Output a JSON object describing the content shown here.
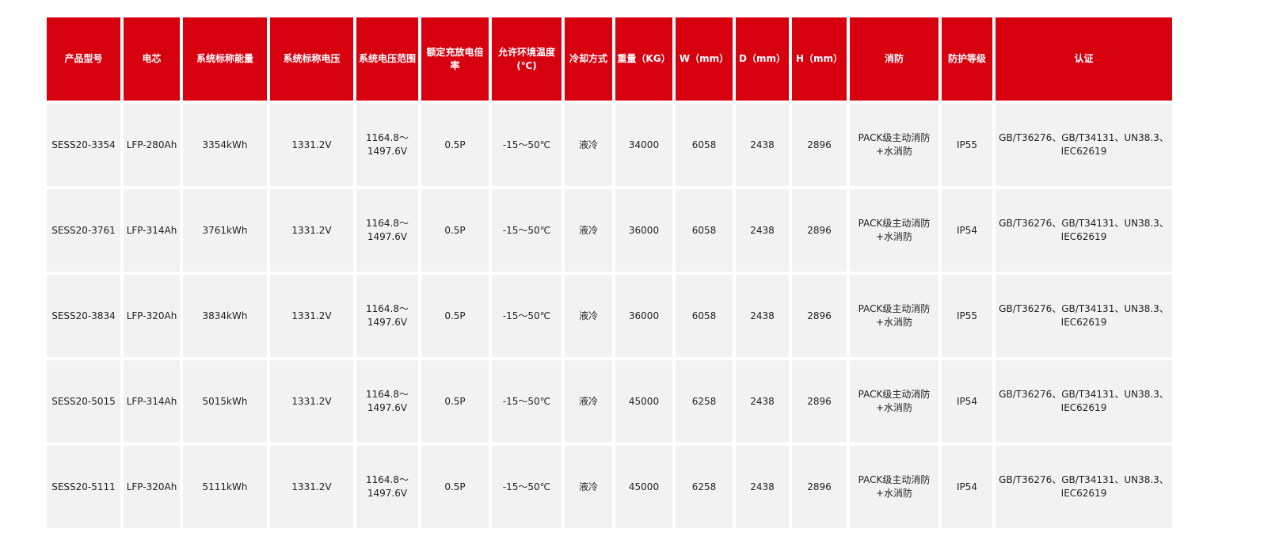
{
  "table": {
    "headers": [
      "产品型号",
      "电芯",
      "系统标称能量",
      "系统标称电压",
      "系统电压范围",
      "额定充放电倍率",
      "允许环境温度(℃)",
      "冷却方式",
      "重量（KG）",
      "W（mm）",
      "D（mm）",
      "H（mm）",
      "消防",
      "防护等级",
      "认证"
    ],
    "rows": [
      [
        "SESS20-3354",
        "LFP-280Ah",
        "3354kWh",
        "1331.2V",
        "1164.8～1497.6V",
        "0.5P",
        "-15～50℃",
        "液冷",
        "34000",
        "6058",
        "2438",
        "2896",
        "PACK级主动消防+水消防",
        "IP55",
        "GB/T36276、GB/T34131、UN38.3、IEC62619"
      ],
      [
        "SESS20-3761",
        "LFP-314Ah",
        "3761kWh",
        "1331.2V",
        "1164.8～1497.6V",
        "0.5P",
        "-15～50℃",
        "液冷",
        "36000",
        "6058",
        "2438",
        "2896",
        "PACK级主动消防+水消防",
        "IP54",
        "GB/T36276、GB/T34131、UN38.3、IEC62619"
      ],
      [
        "SESS20-3834",
        "LFP-320Ah",
        "3834kWh",
        "1331.2V",
        "1164.8～1497.6V",
        "0.5P",
        "-15～50℃",
        "液冷",
        "36000",
        "6058",
        "2438",
        "2896",
        "PACK级主动消防+水消防",
        "IP55",
        "GB/T36276、GB/T34131、UN38.3、IEC62619"
      ],
      [
        "SESS20-5015",
        "LFP-314Ah",
        "5015kWh",
        "1331.2V",
        "1164.8～1497.6V",
        "0.5P",
        "-15～50℃",
        "液冷",
        "45000",
        "6258",
        "2438",
        "2896",
        "PACK级主动消防+水消防",
        "IP54",
        "GB/T36276、GB/T34131、UN38.3、IEC62619"
      ],
      [
        "SESS20-5111",
        "LFP-320Ah",
        "5111kWh",
        "1331.2V",
        "1164.8～1497.6V",
        "0.5P",
        "-15～50℃",
        "液冷",
        "45000",
        "6258",
        "2438",
        "2896",
        "PACK级主动消防+水消防",
        "IP54",
        "GB/T36276、GB/T34131、UN38.3、IEC62619"
      ]
    ]
  },
  "colors": {
    "header_bg": "#d7000f",
    "cell_bg": "#f2f2f2"
  }
}
